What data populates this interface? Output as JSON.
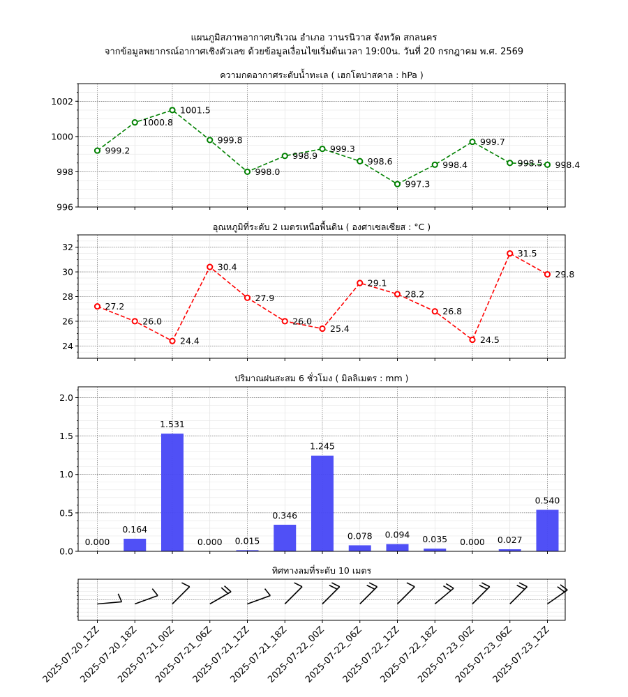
{
  "header": {
    "line1": "แผนภูมิสภาพอากาศบริเวณ อำเภอ วานรนิวาส จังหวัด สกลนคร",
    "line2": "จากข้อมูลพยากรณ์อากาศเชิงตัวเลข ด้วยข้อมูลเงื่อนไขเริ่มต้นเวลา 19:00น. วันที่ 20 กรกฎาคม พ.ศ. 2569"
  },
  "chart_data": [
    {
      "type": "line",
      "title": "ความกดอากาศระดับน้ำทะเล ( เฮกโตปาสคาล : hPa )",
      "color": "#008000",
      "categories": [
        "2025-07-20_12Z",
        "2025-07-20_18Z",
        "2025-07-21_00Z",
        "2025-07-21_06Z",
        "2025-07-21_12Z",
        "2025-07-21_18Z",
        "2025-07-22_00Z",
        "2025-07-22_06Z",
        "2025-07-22_12Z",
        "2025-07-22_18Z",
        "2025-07-23_00Z",
        "2025-07-23_06Z",
        "2025-07-23_12Z"
      ],
      "values": [
        999.2,
        1000.8,
        1001.5,
        999.8,
        998.0,
        998.9,
        999.3,
        998.6,
        997.3,
        998.4,
        999.7,
        998.5,
        998.4
      ],
      "labels": [
        "999.2",
        "1000.8",
        "1001.5",
        "999.8",
        "998.0",
        "998.9",
        "999.3",
        "998.6",
        "997.3",
        "998.4",
        "999.7",
        "998.5",
        "998.4"
      ],
      "ylim": [
        996,
        1003
      ],
      "yticks": [
        996,
        998,
        1000,
        1002
      ],
      "ytick_labels": [
        "996",
        "998",
        "1000",
        "1002"
      ]
    },
    {
      "type": "line",
      "title": "อุณหภูมิที่ระดับ 2 เมตรเหนือพื้นดิน ( องศาเซลเซียส : °C )",
      "color": "#ff0000",
      "categories": [
        "2025-07-20_12Z",
        "2025-07-20_18Z",
        "2025-07-21_00Z",
        "2025-07-21_06Z",
        "2025-07-21_12Z",
        "2025-07-21_18Z",
        "2025-07-22_00Z",
        "2025-07-22_06Z",
        "2025-07-22_12Z",
        "2025-07-22_18Z",
        "2025-07-23_00Z",
        "2025-07-23_06Z",
        "2025-07-23_12Z"
      ],
      "values": [
        27.2,
        26.0,
        24.4,
        30.4,
        27.9,
        26.0,
        25.4,
        29.1,
        28.2,
        26.8,
        24.5,
        31.5,
        29.8
      ],
      "labels": [
        "27.2",
        "26.0",
        "24.4",
        "30.4",
        "27.9",
        "26.0",
        "25.4",
        "29.1",
        "28.2",
        "26.8",
        "24.5",
        "31.5",
        "29.8"
      ],
      "ylim": [
        23,
        33
      ],
      "yticks": [
        24,
        26,
        28,
        30,
        32
      ],
      "ytick_labels": [
        "24",
        "26",
        "28",
        "30",
        "32"
      ]
    },
    {
      "type": "bar",
      "title": "ปริมาณฝนสะสม 6 ชั่วโมง ( มิลลิเมตร : mm )",
      "color": "#4747f5",
      "categories": [
        "2025-07-20_12Z",
        "2025-07-20_18Z",
        "2025-07-21_00Z",
        "2025-07-21_06Z",
        "2025-07-21_12Z",
        "2025-07-21_18Z",
        "2025-07-22_00Z",
        "2025-07-22_06Z",
        "2025-07-22_12Z",
        "2025-07-22_18Z",
        "2025-07-23_00Z",
        "2025-07-23_06Z",
        "2025-07-23_12Z"
      ],
      "values": [
        0.0,
        0.164,
        1.531,
        0.0,
        0.015,
        0.346,
        1.245,
        0.078,
        0.094,
        0.035,
        0.0,
        0.027,
        0.54
      ],
      "labels": [
        "0.000",
        "0.164",
        "1.531",
        "0.000",
        "0.015",
        "0.346",
        "1.245",
        "0.078",
        "0.094",
        "0.035",
        "0.000",
        "0.027",
        "0.540"
      ],
      "ylim": [
        0,
        2.14
      ],
      "yticks": [
        0.0,
        0.5,
        1.0,
        1.5,
        2.0
      ],
      "ytick_labels": [
        "0.0",
        "0.5",
        "1.0",
        "1.5",
        "2.0"
      ]
    },
    {
      "type": "wind_barbs",
      "title": "ทิศทางลมที่ระดับ 10 เมตร",
      "categories": [
        "2025-07-20_12Z",
        "2025-07-20_18Z",
        "2025-07-21_00Z",
        "2025-07-21_06Z",
        "2025-07-21_12Z",
        "2025-07-21_18Z",
        "2025-07-22_00Z",
        "2025-07-22_06Z",
        "2025-07-22_12Z",
        "2025-07-22_18Z",
        "2025-07-23_00Z",
        "2025-07-23_06Z",
        "2025-07-23_12Z"
      ],
      "direction_deg": [
        265,
        250,
        225,
        240,
        250,
        225,
        225,
        225,
        225,
        230,
        225,
        225,
        235
      ],
      "barbs": [
        1,
        1,
        1,
        2,
        1,
        1,
        2,
        2,
        1,
        2,
        2,
        2,
        2
      ]
    }
  ]
}
